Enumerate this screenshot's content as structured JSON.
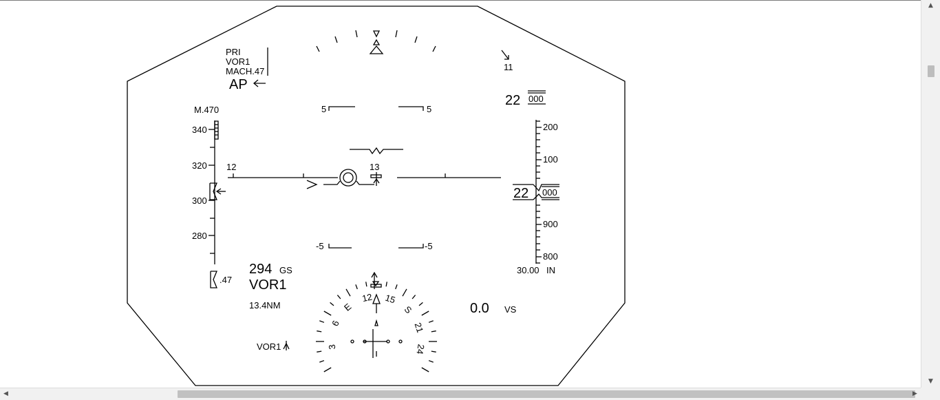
{
  "modes": {
    "line1": "PRI",
    "line2": "VOR1",
    "line3": "MACH.47",
    "autopilot": "AP"
  },
  "mach_label": "M.470",
  "speed_tape": {
    "labels": [
      "340",
      "320",
      "300",
      "280"
    ],
    "bug_value": ".47"
  },
  "ground_speed": {
    "value": "294",
    "unit": "GS"
  },
  "nav": {
    "source": "VOR1",
    "distance": "13.4NM",
    "bearing_source": "VOR1"
  },
  "heading_ticks": {
    "left": "12",
    "right": "13"
  },
  "pitch_scale": {
    "up_left": "5",
    "up_right": "5",
    "down_left": "-5",
    "down_right": "-5"
  },
  "wind": {
    "value": "11"
  },
  "selected_altitude": {
    "hundreds": "22",
    "thousands": "000"
  },
  "altitude_tape": {
    "labels": [
      "200",
      "100",
      "900",
      "800"
    ],
    "current_hundreds": "22",
    "current_thousands": "000"
  },
  "baro": {
    "value": "30.00",
    "unit": "IN"
  },
  "vertical_speed": {
    "value": "0.0",
    "unit": "VS"
  },
  "compass": {
    "labels": [
      "3",
      "6",
      "E",
      "12",
      "15",
      "S",
      "21",
      "24"
    ]
  },
  "scrollbars": {
    "up_icon": "triangle-up-icon",
    "down_icon": "triangle-down-icon",
    "left_icon": "triangle-left-icon",
    "right_icon": "triangle-right-icon"
  }
}
